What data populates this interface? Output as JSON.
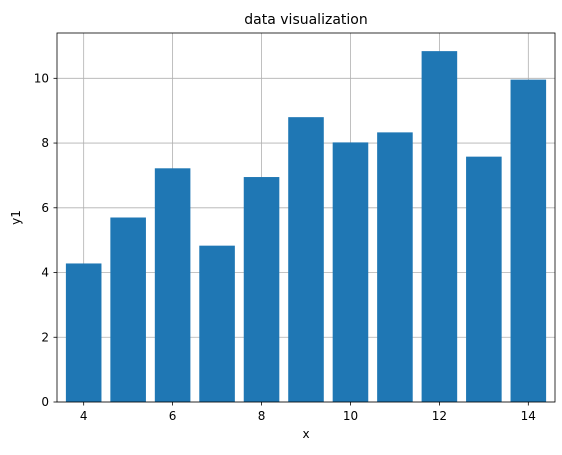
{
  "chart_data": {
    "type": "bar",
    "title": "data visualization",
    "xlabel": "x",
    "ylabel": "y1",
    "x": [
      4,
      5,
      6,
      7,
      8,
      9,
      10,
      11,
      12,
      13,
      14
    ],
    "values": [
      4.28,
      5.7,
      7.22,
      4.83,
      6.95,
      8.8,
      8.02,
      8.33,
      10.84,
      7.58,
      9.96
    ],
    "color": "#1f77b4",
    "xlim": [
      3.4,
      14.6
    ],
    "ylim": [
      0,
      11.4
    ],
    "xticks": [
      4,
      6,
      8,
      10,
      12,
      14
    ],
    "yticks": [
      0,
      2,
      4,
      6,
      8,
      10
    ],
    "grid": true,
    "legend": false
  }
}
